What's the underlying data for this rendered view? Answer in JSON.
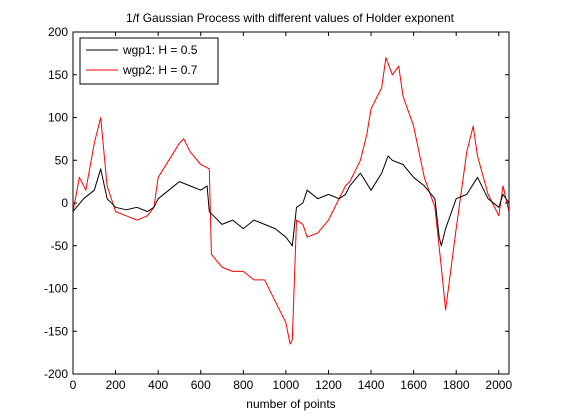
{
  "chart_data": {
    "type": "line",
    "title": "1/f Gaussian Process with different values of Holder exponent",
    "xlabel": "number of points",
    "ylabel": "",
    "xlim": [
      0,
      2048
    ],
    "ylim": [
      -200,
      200
    ],
    "xticks": [
      0,
      200,
      400,
      600,
      800,
      1000,
      1200,
      1400,
      1600,
      1800,
      2000
    ],
    "yticks": [
      -200,
      -150,
      -100,
      -50,
      0,
      50,
      100,
      150,
      200
    ],
    "legend_position": "top-left",
    "grid": false,
    "series": [
      {
        "name": "wgp1: H = 0.5",
        "color": "#000000",
        "x": [
          0,
          50,
          100,
          130,
          160,
          200,
          250,
          300,
          350,
          380,
          400,
          450,
          500,
          550,
          600,
          630,
          640,
          660,
          700,
          750,
          800,
          850,
          900,
          950,
          1000,
          1030,
          1050,
          1080,
          1100,
          1150,
          1200,
          1250,
          1280,
          1300,
          1350,
          1400,
          1450,
          1480,
          1500,
          1550,
          1600,
          1650,
          1700,
          1720,
          1730,
          1750,
          1800,
          1850,
          1900,
          1950,
          2000,
          2020,
          2048
        ],
        "y": [
          -10,
          5,
          15,
          40,
          5,
          -5,
          -8,
          -5,
          -10,
          -5,
          5,
          15,
          25,
          20,
          15,
          20,
          -10,
          -15,
          -25,
          -20,
          -30,
          -20,
          -25,
          -30,
          -40,
          -50,
          -5,
          0,
          15,
          5,
          10,
          5,
          10,
          20,
          35,
          15,
          35,
          55,
          50,
          45,
          30,
          20,
          5,
          -40,
          -50,
          -30,
          5,
          10,
          30,
          5,
          -5,
          10,
          0
        ]
      },
      {
        "name": "wgp2: H = 0.7",
        "color": "#ff0000",
        "x": [
          0,
          30,
          60,
          100,
          130,
          160,
          200,
          250,
          300,
          350,
          380,
          400,
          450,
          500,
          520,
          550,
          600,
          640,
          650,
          700,
          750,
          800,
          850,
          900,
          950,
          1000,
          1020,
          1030,
          1050,
          1080,
          1100,
          1150,
          1200,
          1250,
          1280,
          1300,
          1350,
          1380,
          1400,
          1450,
          1470,
          1500,
          1530,
          1550,
          1600,
          1650,
          1700,
          1730,
          1750,
          1800,
          1850,
          1880,
          1900,
          1950,
          2000,
          2020,
          2048
        ],
        "y": [
          -10,
          30,
          15,
          70,
          100,
          20,
          -10,
          -15,
          -20,
          -15,
          -5,
          30,
          50,
          70,
          75,
          60,
          45,
          40,
          -60,
          -75,
          -80,
          -80,
          -90,
          -90,
          -115,
          -140,
          -165,
          -160,
          -20,
          -25,
          -40,
          -35,
          -20,
          5,
          20,
          25,
          50,
          80,
          110,
          135,
          170,
          150,
          160,
          125,
          90,
          30,
          -5,
          -75,
          -125,
          -30,
          60,
          90,
          55,
          10,
          -15,
          20,
          -10
        ]
      }
    ]
  }
}
